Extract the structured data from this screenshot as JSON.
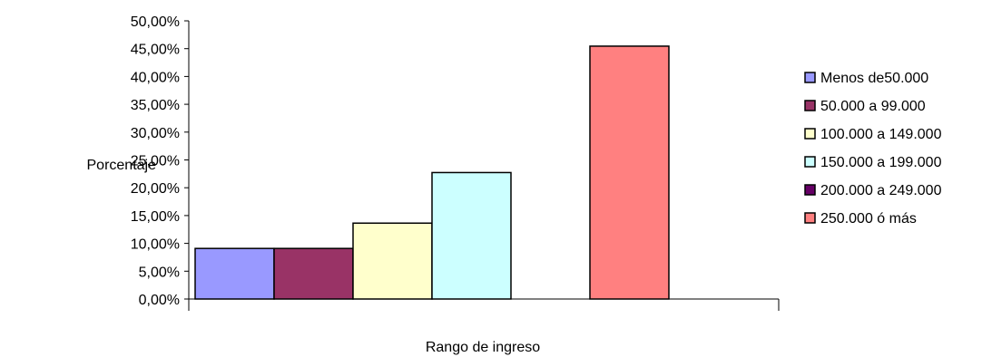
{
  "chart_data": {
    "type": "bar",
    "title": "",
    "xlabel": "Rango de ingreso",
    "ylabel": "Porcentaje",
    "ylim": [
      0,
      0.5
    ],
    "ytick_step": 0.05,
    "ytick_labels": [
      "0,00%",
      "5,00%",
      "10,00%",
      "15,00%",
      "20,00%",
      "25,00%",
      "30,00%",
      "35,00%",
      "40,00%",
      "45,00%",
      "50,00%"
    ],
    "grid": false,
    "legend_position": "right",
    "series": [
      {
        "name": "Menos de50.000",
        "value": 0.0909,
        "color": "#9999FF"
      },
      {
        "name": "50.000 a 99.000",
        "value": 0.0909,
        "color": "#993366"
      },
      {
        "name": "100.000 a 149.000",
        "value": 0.1364,
        "color": "#FFFFCC"
      },
      {
        "name": "150.000 a 199.000",
        "value": 0.2273,
        "color": "#CCFFFF"
      },
      {
        "name": "200.000 a 249.000",
        "value": 0,
        "color": "#660066"
      },
      {
        "name": "250.000 ó más",
        "value": 0.4545,
        "color": "#FF8080"
      }
    ]
  }
}
